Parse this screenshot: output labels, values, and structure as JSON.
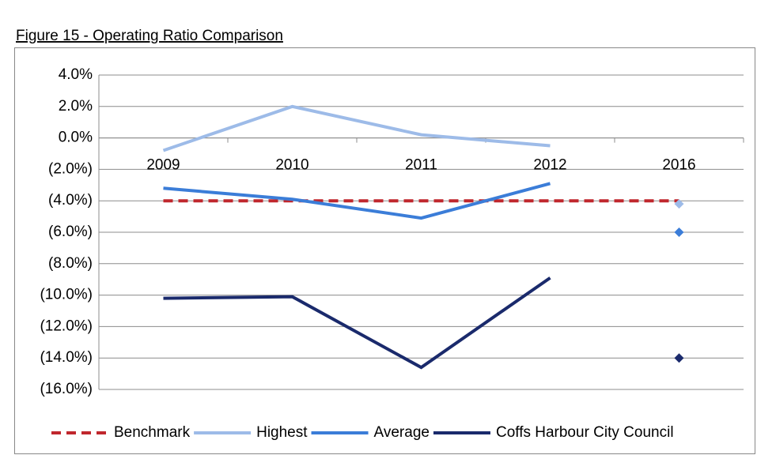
{
  "chart_data": {
    "type": "line",
    "title": "Figure 15 - Operating Ratio Comparison",
    "categories": [
      "2009",
      "2010",
      "2011",
      "2012",
      "2016"
    ],
    "series": [
      {
        "name": "Benchmark",
        "color": "#c0272d",
        "dashed": true,
        "values": [
          -4,
          -4,
          -4,
          -4,
          -4
        ]
      },
      {
        "name": "Highest",
        "color": "#9dbbe8",
        "values": [
          -0.8,
          2.0,
          0.2,
          -0.5,
          -4.2
        ]
      },
      {
        "name": "Average",
        "color": "#3b7dd8",
        "values": [
          -3.2,
          -3.9,
          -5.1,
          -2.9,
          -6.0
        ]
      },
      {
        "name": "Coffs Harbour City Council",
        "color": "#1a2a6c",
        "values": [
          -10.2,
          -10.1,
          -14.6,
          -8.9,
          -14.0
        ]
      }
    ],
    "ylim": [
      -16,
      4
    ],
    "yticks": [
      {
        "value": 4,
        "label": "4.0%"
      },
      {
        "value": 2,
        "label": "2.0%"
      },
      {
        "value": 0,
        "label": "0.0%"
      },
      {
        "value": -2,
        "label": "(2.0%)"
      },
      {
        "value": -4,
        "label": "(4.0%)"
      },
      {
        "value": -6,
        "label": "(6.0%)"
      },
      {
        "value": -8,
        "label": "(8.0%)"
      },
      {
        "value": -10,
        "label": "(10.0%)"
      },
      {
        "value": -12,
        "label": "(12.0%)"
      },
      {
        "value": -14,
        "label": "(14.0%)"
      },
      {
        "value": -16,
        "label": "(16.0%)"
      }
    ],
    "grid": true,
    "legend": "bottom"
  }
}
